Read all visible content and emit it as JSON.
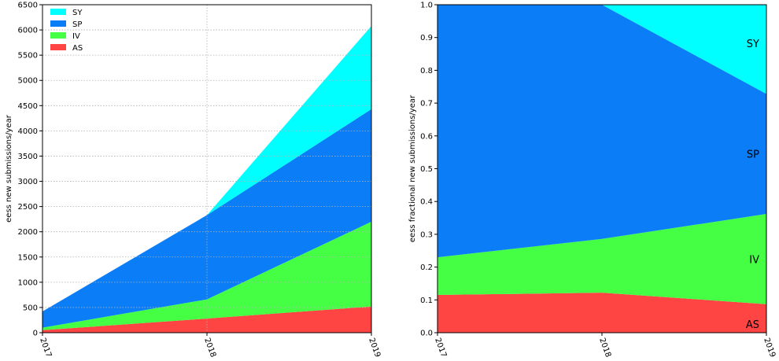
{
  "chart_data": [
    {
      "type": "area",
      "stacked": true,
      "x": [
        "2017",
        "2018",
        "2019"
      ],
      "series": [
        {
          "name": "AS",
          "color": "#ff4444",
          "values": [
            50,
            280,
            520
          ]
        },
        {
          "name": "IV",
          "color": "#44ff44",
          "values": [
            50,
            380,
            1680
          ]
        },
        {
          "name": "SP",
          "color": "#0a7df7",
          "values": [
            320,
            1670,
            2230
          ]
        },
        {
          "name": "SY",
          "color": "#00ffff",
          "values": [
            0,
            0,
            1650
          ]
        }
      ],
      "legend_order": [
        "SY",
        "SP",
        "IV",
        "AS"
      ],
      "legend_position": "top-left",
      "ylabel": "eess new submissions/year",
      "xlabel": "",
      "ylim": [
        0,
        6500
      ],
      "yticks": [
        "0",
        "500",
        "1000",
        "1500",
        "2000",
        "2500",
        "3000",
        "3500",
        "4000",
        "4500",
        "5000",
        "5500",
        "6000",
        "6500"
      ],
      "grid": true
    },
    {
      "type": "area",
      "stacked": true,
      "x": [
        "2017",
        "2018",
        "2019"
      ],
      "series": [
        {
          "name": "AS",
          "color": "#ff4444",
          "values": [
            0.115,
            0.122,
            0.087
          ]
        },
        {
          "name": "IV",
          "color": "#44ff44",
          "values": [
            0.115,
            0.164,
            0.275
          ]
        },
        {
          "name": "SP",
          "color": "#0a7df7",
          "values": [
            0.77,
            0.714,
            0.366
          ]
        },
        {
          "name": "SY",
          "color": "#00ffff",
          "values": [
            0,
            0,
            0.272
          ]
        }
      ],
      "area_labels": [
        "AS",
        "IV",
        "SP",
        "SY"
      ],
      "ylabel": "eess fractional new submissions/year",
      "xlabel": "",
      "ylim": [
        0,
        1.0
      ],
      "yticks": [
        "0.0",
        "0.1",
        "0.2",
        "0.3",
        "0.4",
        "0.5",
        "0.6",
        "0.7",
        "0.8",
        "0.9",
        "1.0"
      ],
      "grid": false
    }
  ]
}
